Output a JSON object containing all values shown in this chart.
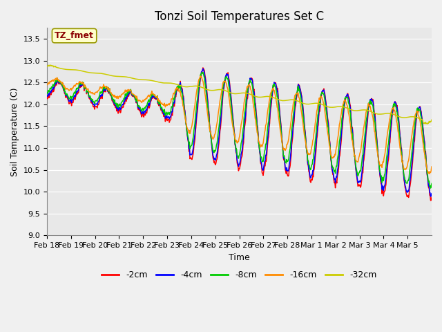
{
  "title": "Tonzi Soil Temperatures Set C",
  "xlabel": "Time",
  "ylabel": "Soil Temperature (C)",
  "ylim": [
    9.0,
    13.75
  ],
  "yticks": [
    9.0,
    9.5,
    10.0,
    10.5,
    11.0,
    11.5,
    12.0,
    12.5,
    13.0,
    13.5
  ],
  "annotation_text": "TZ_fmet",
  "annotation_color": "#8B0000",
  "annotation_bg": "#FFFFCC",
  "annotation_border": "#999900",
  "xtick_labels": [
    "Feb 18",
    "Feb 19",
    "Feb 20",
    "Feb 21",
    "Feb 22",
    "Feb 23",
    "Feb 24",
    "Feb 25",
    "Feb 26",
    "Feb 27",
    "Feb 28",
    "Mar 1",
    "Mar 2",
    "Mar 3",
    "Mar 4",
    "Mar 5"
  ],
  "series_colors": [
    "#FF0000",
    "#0000FF",
    "#00CC00",
    "#FF8C00",
    "#CCCC00"
  ],
  "series_labels": [
    "-2cm",
    "-4cm",
    "-8cm",
    "-16cm",
    "-32cm"
  ]
}
